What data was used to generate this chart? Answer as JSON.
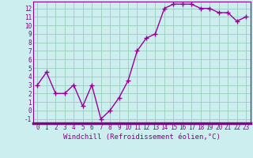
{
  "x": [
    0,
    1,
    2,
    3,
    4,
    5,
    6,
    7,
    8,
    9,
    10,
    11,
    12,
    13,
    14,
    15,
    16,
    17,
    18,
    19,
    20,
    21,
    22,
    23
  ],
  "y": [
    3.0,
    4.5,
    2.0,
    2.0,
    3.0,
    0.5,
    3.0,
    -1.0,
    0.0,
    1.5,
    3.5,
    7.0,
    8.5,
    9.0,
    12.0,
    12.5,
    12.5,
    12.5,
    12.0,
    12.0,
    11.5,
    11.5,
    10.5,
    11.0
  ],
  "line_color": "#990099",
  "marker": "+",
  "marker_size": 4,
  "line_width": 1.0,
  "xlabel": "Windchill (Refroidissement éolien,°C)",
  "xlabel_fontsize": 6.5,
  "background_color": "#cceeee",
  "grid_color": "#99ccbb",
  "tick_color": "#880088",
  "label_color": "#880088",
  "spine_color": "#880088",
  "ylim": [
    -1.5,
    12.8
  ],
  "yticks": [
    -1,
    0,
    1,
    2,
    3,
    4,
    5,
    6,
    7,
    8,
    9,
    10,
    11,
    12
  ],
  "xticks": [
    0,
    1,
    2,
    3,
    4,
    5,
    6,
    7,
    8,
    9,
    10,
    11,
    12,
    13,
    14,
    15,
    16,
    17,
    18,
    19,
    20,
    21,
    22,
    23
  ],
  "tick_fontsize": 5.5
}
